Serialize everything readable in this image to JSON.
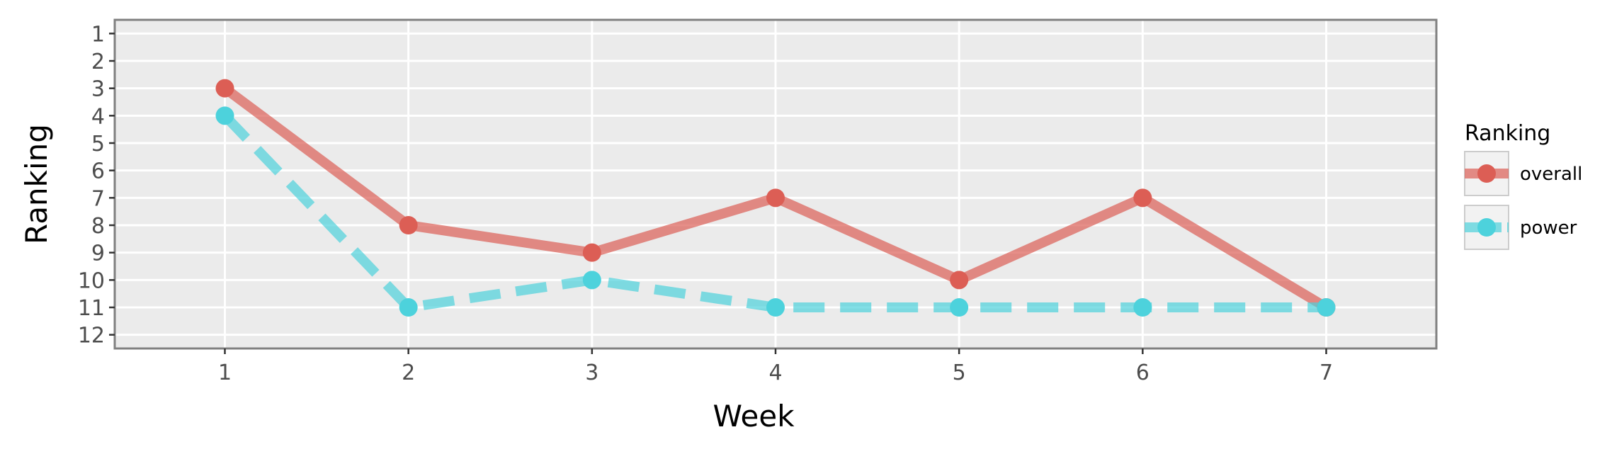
{
  "chart_data": {
    "type": "line",
    "xlabel": "Week",
    "ylabel": "Ranking",
    "x": [
      1,
      2,
      3,
      4,
      5,
      6,
      7
    ],
    "x_ticks": [
      "1",
      "2",
      "3",
      "4",
      "5",
      "6",
      "7"
    ],
    "y_ticks": [
      "1",
      "2",
      "3",
      "4",
      "5",
      "6",
      "7",
      "8",
      "9",
      "10",
      "11",
      "12"
    ],
    "xlim": [
      0.4,
      7.6
    ],
    "ylim": [
      12.5,
      0.5
    ],
    "y_reversed": true,
    "grid": true,
    "legend": {
      "title": "Ranking",
      "position": "right"
    },
    "series": [
      {
        "name": "overall",
        "values": [
          3,
          8,
          9,
          7,
          10,
          7,
          11
        ],
        "color": "#dc5e55",
        "line_style": "solid"
      },
      {
        "name": "power",
        "values": [
          4,
          11,
          10,
          11,
          11,
          11,
          11
        ],
        "color": "#4dd2dc",
        "line_style": "dashed"
      }
    ]
  }
}
